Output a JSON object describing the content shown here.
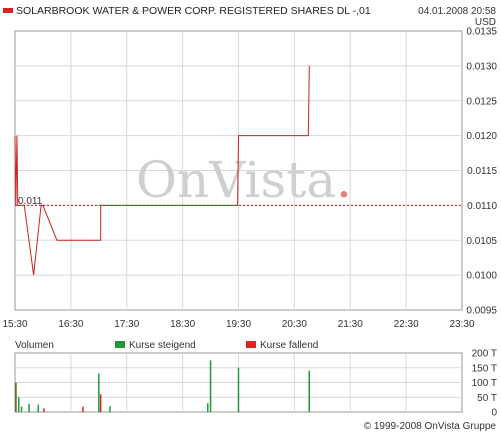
{
  "header": {
    "title": "SOLARBROOK WATER & POWER CORP. REGISTERED SHARES DL -,01",
    "datetime": "04.01.2008 20:58",
    "currency": "USD",
    "title_marker_color": "#dd2222"
  },
  "watermark": {
    "text": "OnVista",
    "dot_color": "#e08080"
  },
  "volume_legend": {
    "label": "Volumen",
    "rising": "Kurse steigend",
    "falling": "Kurse fallend",
    "rising_color": "#1f9a3a",
    "falling_color": "#dd2222",
    "mixed_color": "#6b5a20"
  },
  "footer": {
    "copyright": "© 1999-2008 OnVista Gruppe"
  },
  "colors": {
    "price_line": "#cc2020",
    "reference_line": "#cc2020",
    "grid": "#d8d8d8",
    "frame": "#999999"
  },
  "chart_data": [
    {
      "type": "line",
      "series": [
        {
          "values_x": [
            "15:30",
            "15:31",
            "15:32",
            "15:33",
            "15:35",
            "15:38",
            "15:40",
            "15:50",
            "15:58",
            "16:00",
            "16:15",
            "16:45",
            "16:45",
            "16:50",
            "17:00",
            "17:02",
            "17:02",
            "17:30",
            "19:29",
            "19:29",
            "19:30",
            "20:45",
            "20:45",
            "20:46",
            "20:46"
          ],
          "values_y": [
            0.012,
            0.011,
            0.012,
            0.011,
            0.011,
            0.011,
            0.011,
            0.01,
            0.011,
            0.011,
            0.0105,
            0.0105,
            0.0105,
            0.0105,
            0.0105,
            0.0105,
            0.011,
            0.011,
            0.011,
            0.011,
            0.012,
            0.012,
            0.012,
            0.013,
            0.013
          ]
        }
      ],
      "reference_line": {
        "value": 0.011,
        "label": "0.011"
      },
      "x_ticks": [
        "15:30",
        "16:30",
        "17:30",
        "18:30",
        "19:30",
        "20:30",
        "21:30",
        "22:30",
        "23:30"
      ],
      "y_ticks": [
        "0.0135",
        "0.0130",
        "0.0125",
        "0.0120",
        "0.0115",
        "0.0110",
        "0.0105",
        "0.0100",
        "0.0095"
      ],
      "xlim": [
        "15:30",
        "23:30"
      ],
      "ylim": [
        0.0095,
        0.0135
      ],
      "grid": true
    },
    {
      "type": "bar",
      "y_ticks": [
        "200 T",
        "150 T",
        "100 T",
        "50 T",
        "0"
      ],
      "ylim": [
        0,
        200
      ],
      "unit": "T",
      "bars": [
        {
          "x": "15:31",
          "value": 100,
          "dir": "mixed"
        },
        {
          "x": "15:34",
          "value": 50,
          "dir": "rising"
        },
        {
          "x": "15:37",
          "value": 18,
          "dir": "rising"
        },
        {
          "x": "15:45",
          "value": 28,
          "dir": "rising"
        },
        {
          "x": "15:55",
          "value": 25,
          "dir": "rising"
        },
        {
          "x": "16:01",
          "value": 12,
          "dir": "falling"
        },
        {
          "x": "16:43",
          "value": 18,
          "dir": "falling"
        },
        {
          "x": "17:00",
          "value": 130,
          "dir": "rising"
        },
        {
          "x": "17:02",
          "value": 60,
          "dir": "falling"
        },
        {
          "x": "17:12",
          "value": 20,
          "dir": "rising"
        },
        {
          "x": "18:57",
          "value": 30,
          "dir": "rising"
        },
        {
          "x": "19:00",
          "value": 175,
          "dir": "rising"
        },
        {
          "x": "19:30",
          "value": 150,
          "dir": "rising"
        },
        {
          "x": "20:46",
          "value": 140,
          "dir": "rising"
        }
      ]
    }
  ]
}
